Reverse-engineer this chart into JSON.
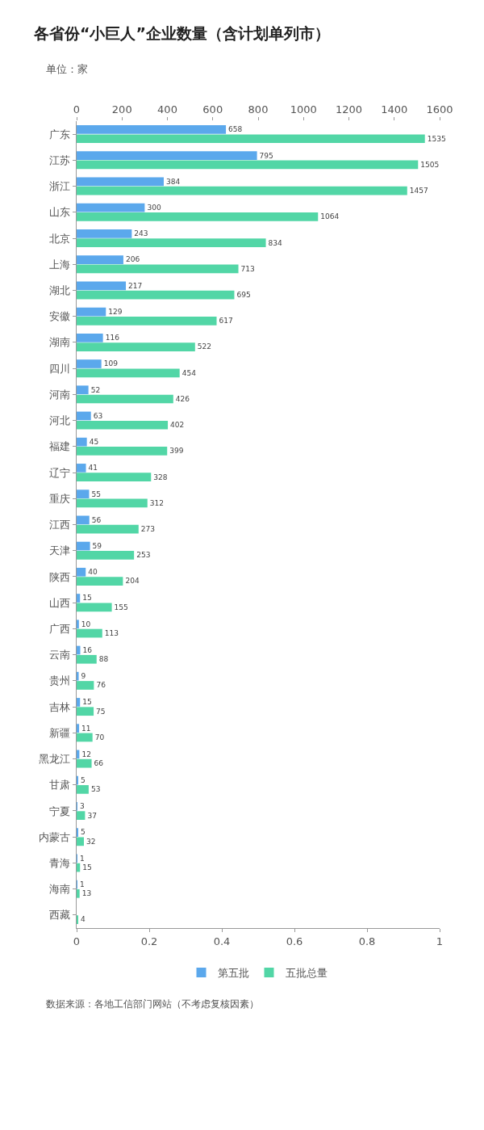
{
  "chart_data": {
    "type": "bar",
    "orientation": "horizontal",
    "title": "各省份“小巨人”企业数量（含计划单列市）",
    "subtitle": "单位：家",
    "categories": [
      "广东",
      "江苏",
      "浙江",
      "山东",
      "北京",
      "上海",
      "湖北",
      "安徽",
      "湖南",
      "四川",
      "河南",
      "河北",
      "福建",
      "辽宁",
      "重庆",
      "江西",
      "天津",
      "陕西",
      "山西",
      "广西",
      "云南",
      "贵州",
      "吉林",
      "新疆",
      "黑龙江",
      "甘肃",
      "宁夏",
      "内蒙古",
      "青海",
      "海南",
      "西藏"
    ],
    "series": [
      {
        "name": "第五批",
        "color": "#5ba8ec",
        "values": [
          658,
          795,
          384,
          300,
          243,
          206,
          217,
          129,
          116,
          109,
          52,
          63,
          45,
          41,
          55,
          56,
          59,
          40,
          15,
          10,
          16,
          9,
          15,
          11,
          12,
          5,
          3,
          5,
          1,
          1,
          null
        ]
      },
      {
        "name": "五批总量",
        "color": "#52d6a6",
        "values": [
          1535,
          1505,
          1457,
          1064,
          834,
          713,
          695,
          617,
          522,
          454,
          426,
          402,
          399,
          328,
          312,
          273,
          253,
          204,
          155,
          113,
          88,
          76,
          75,
          70,
          66,
          53,
          37,
          32,
          15,
          13,
          4
        ]
      }
    ],
    "xlim": [
      0,
      1600
    ],
    "xticks": [
      0,
      200,
      400,
      600,
      800,
      1000,
      1200,
      1400,
      1600
    ],
    "x2lim": [
      0,
      1
    ],
    "x2ticks": [
      0,
      0.2,
      0.4,
      0.6,
      0.8,
      1
    ],
    "data_labels": true,
    "legend": "bottom",
    "annotations": [
      "数据来源：各地工信部门网站（不考虑复核因素）"
    ]
  }
}
